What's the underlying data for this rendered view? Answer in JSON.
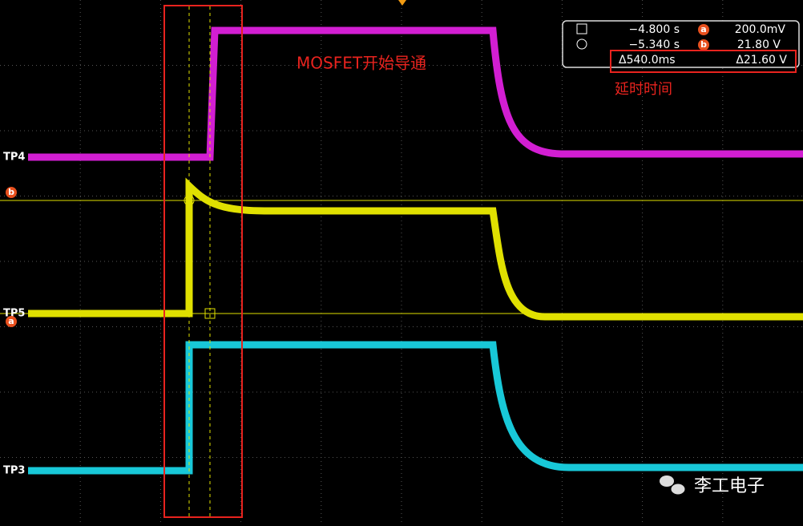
{
  "channels": {
    "tp4": "TP4",
    "tp5": "TP5",
    "tp3": "TP3"
  },
  "cursor_markers": {
    "b": "b",
    "a": "a"
  },
  "readout": {
    "row1": {
      "time": "−4.800 s",
      "marker": "a",
      "value": "200.0mV"
    },
    "row2": {
      "time": "−5.340 s",
      "marker": "b",
      "value": "21.80 V"
    },
    "delta": {
      "time": "Δ540.0ms",
      "value": "Δ21.60 V"
    }
  },
  "annotations": {
    "mosfet": "MOSFET开始导通",
    "delay": "延时时间"
  },
  "watermark": "李工电子"
}
